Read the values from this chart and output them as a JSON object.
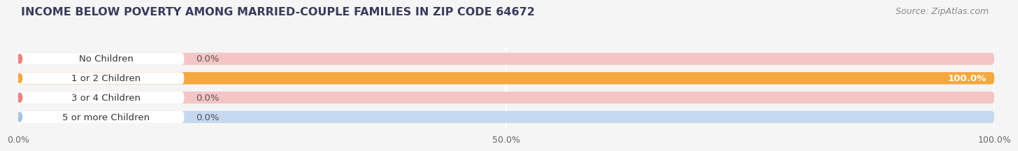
{
  "title": "INCOME BELOW POVERTY AMONG MARRIED-COUPLE FAMILIES IN ZIP CODE 64672",
  "source": "Source: ZipAtlas.com",
  "categories": [
    "No Children",
    "1 or 2 Children",
    "3 or 4 Children",
    "5 or more Children"
  ],
  "values": [
    0.0,
    100.0,
    0.0,
    0.0
  ],
  "bar_colors": [
    "#f08080",
    "#f5a83c",
    "#f08080",
    "#a8c4e0"
  ],
  "bar_bg_colors": [
    "#f5c5c5",
    "#f5c5c5",
    "#f5c5c5",
    "#c5d8ee"
  ],
  "xlim": [
    0,
    100
  ],
  "xticks": [
    0.0,
    50.0,
    100.0
  ],
  "xtick_labels": [
    "0.0%",
    "50.0%",
    "100.0%"
  ],
  "bar_height": 0.62,
  "background_color": "#f5f5f5",
  "row_bg_color": "#ffffff",
  "grid_color": "#dddddd",
  "title_fontsize": 11.5,
  "source_fontsize": 9,
  "tick_fontsize": 9,
  "label_fontsize": 9.5
}
